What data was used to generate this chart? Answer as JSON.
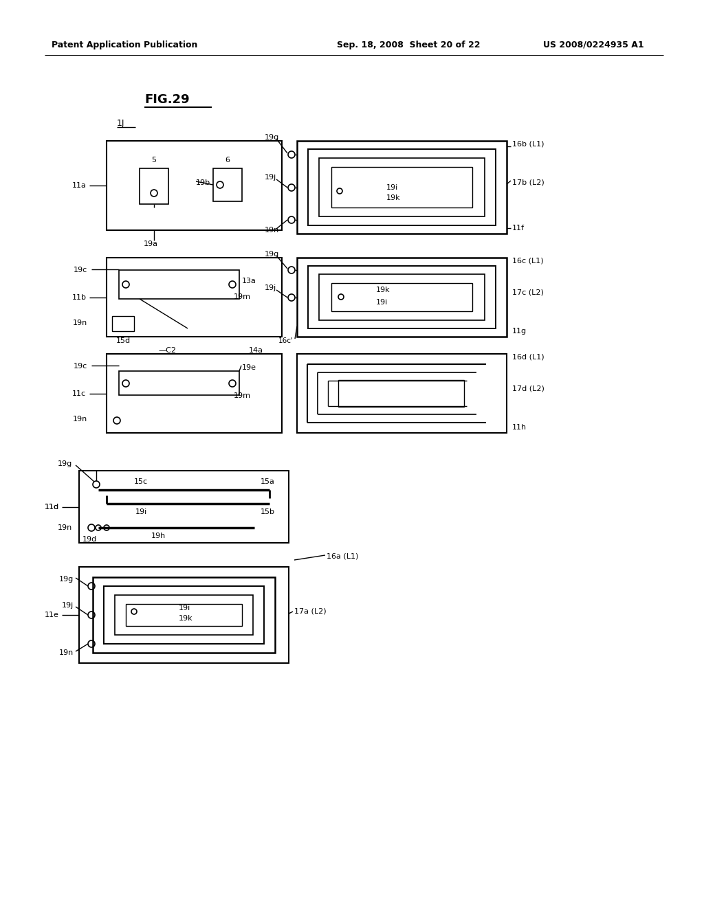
{
  "title": "FIG.29",
  "header_left": "Patent Application Publication",
  "header_center": "Sep. 18, 2008  Sheet 20 of 22",
  "header_right": "US 2008/0224935 A1",
  "bg_color": "#ffffff",
  "line_color": "#000000"
}
